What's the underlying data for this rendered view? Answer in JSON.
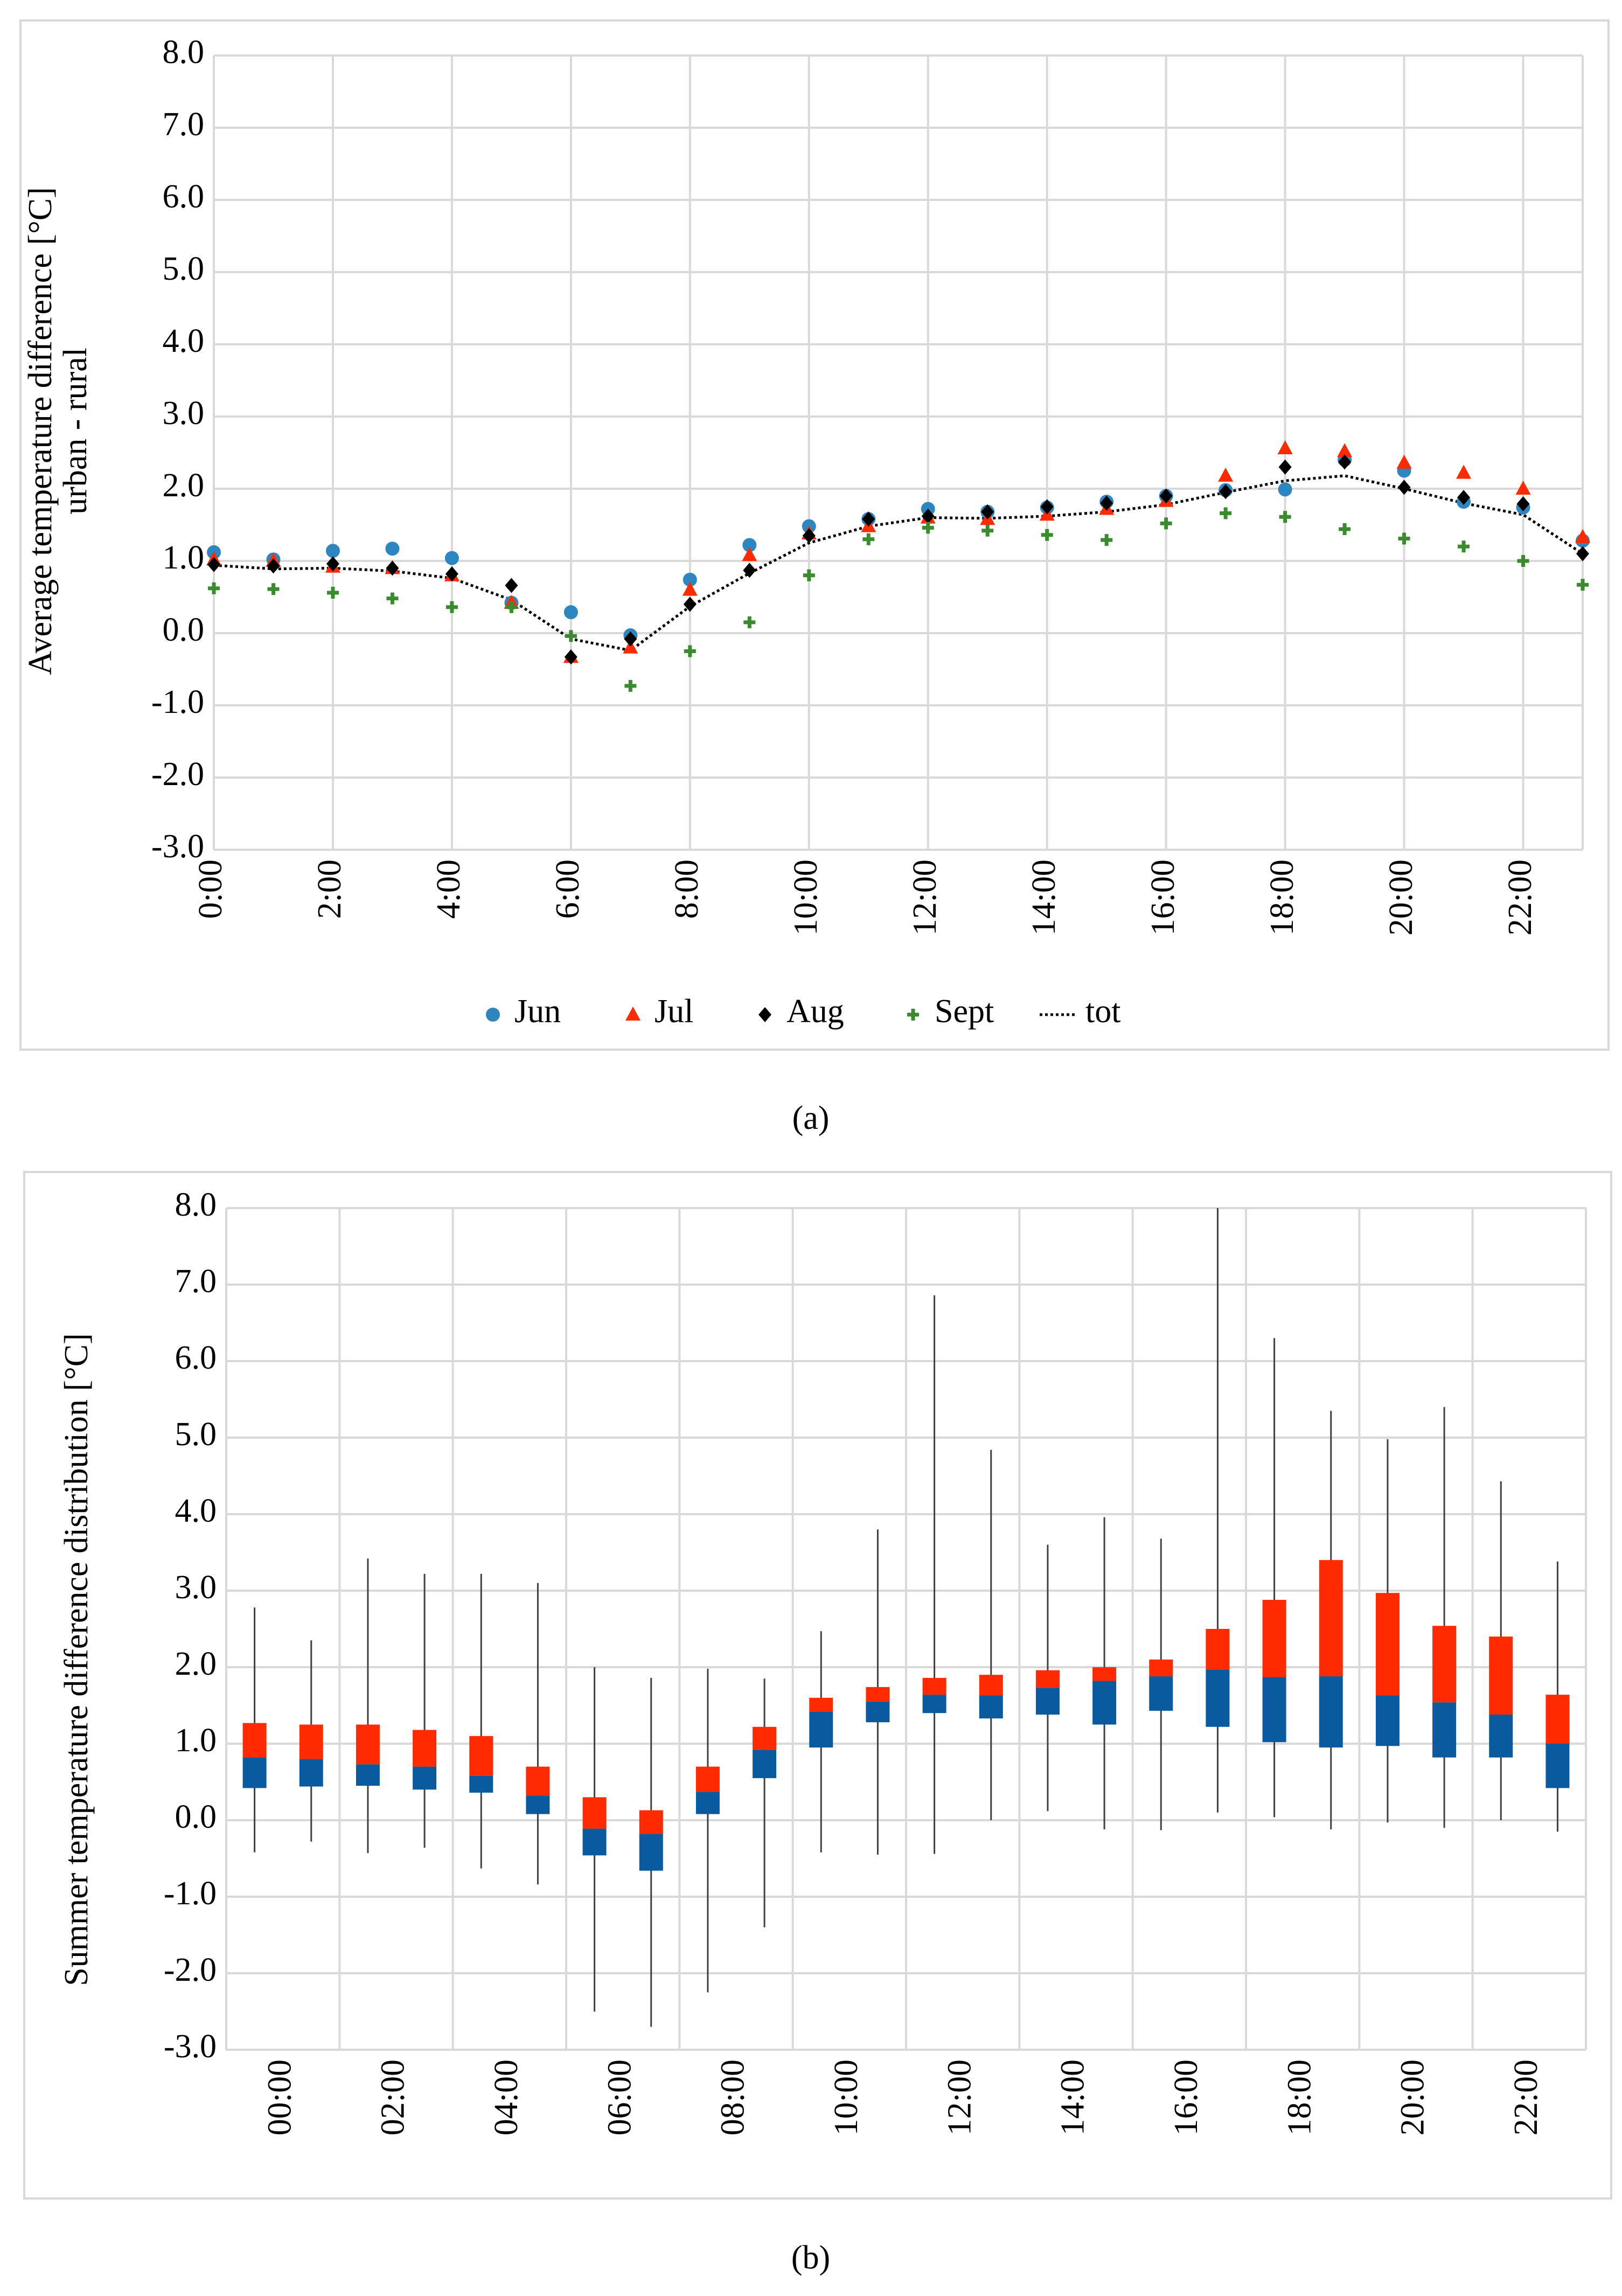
{
  "chart_data": [
    {
      "id": "a",
      "type": "scatter",
      "caption": "(a)",
      "ylabel_line1": "Average temperature difference [°C]",
      "ylabel_line2": "urban - rural",
      "ylim": [
        -3.0,
        8.0
      ],
      "yticks": [
        "8.0",
        "7.0",
        "6.0",
        "5.0",
        "4.0",
        "3.0",
        "2.0",
        "1.0",
        "0.0",
        "-1.0",
        "-2.0",
        "-3.0"
      ],
      "xticks": [
        "0:00",
        "2:00",
        "4:00",
        "6:00",
        "8:00",
        "10:00",
        "12:00",
        "14:00",
        "16:00",
        "18:00",
        "20:00",
        "22:00"
      ],
      "legend_position": "bottom",
      "series": [
        {
          "name": "Jun",
          "marker": "circle",
          "color": "#2e86c1",
          "values": [
            1.12,
            1.02,
            1.14,
            1.17,
            1.04,
            0.42,
            0.29,
            -0.03,
            0.74,
            1.22,
            1.48,
            1.58,
            1.72,
            1.68,
            1.74,
            1.82,
            1.9,
            1.98,
            1.99,
            2.4,
            2.25,
            1.82,
            1.74,
            1.28
          ]
        },
        {
          "name": "Jul",
          "marker": "triangle",
          "color": "#ff2a00",
          "values": [
            1.02,
            1.0,
            0.92,
            0.9,
            0.8,
            0.42,
            -0.33,
            -0.2,
            0.6,
            1.08,
            1.38,
            1.48,
            1.6,
            1.58,
            1.64,
            1.72,
            1.83,
            2.18,
            2.56,
            2.52,
            2.36,
            2.22,
            2.0,
            1.33
          ]
        },
        {
          "name": "Aug",
          "marker": "diamond",
          "color": "#000000",
          "values": [
            0.95,
            0.93,
            0.96,
            0.9,
            0.82,
            0.66,
            -0.33,
            -0.08,
            0.4,
            0.87,
            1.35,
            1.58,
            1.62,
            1.68,
            1.75,
            1.8,
            1.9,
            1.96,
            2.3,
            2.37,
            2.02,
            1.88,
            1.79,
            1.1
          ]
        },
        {
          "name": "Sept",
          "marker": "plus",
          "color": "#3a8a2e",
          "values": [
            0.62,
            0.61,
            0.56,
            0.48,
            0.36,
            0.36,
            -0.04,
            -0.73,
            -0.25,
            0.15,
            0.8,
            1.3,
            1.46,
            1.42,
            1.36,
            1.29,
            1.52,
            1.66,
            1.61,
            1.44,
            1.31,
            1.2,
            1.0,
            0.67
          ]
        },
        {
          "name": "tot",
          "marker": "dotted-line",
          "color": "#000000",
          "values": [
            0.94,
            0.89,
            0.9,
            0.86,
            0.76,
            0.46,
            -0.08,
            -0.24,
            0.37,
            0.83,
            1.25,
            1.48,
            1.6,
            1.59,
            1.62,
            1.68,
            1.78,
            1.95,
            2.11,
            2.18,
            2.0,
            1.8,
            1.64,
            1.1
          ]
        }
      ]
    },
    {
      "id": "b",
      "type": "box",
      "caption": "(b)",
      "ylabel": "Summer temperature difference distribution [°C]",
      "ylim": [
        -3.0,
        8.0
      ],
      "yticks": [
        "8.0",
        "7.0",
        "6.0",
        "5.0",
        "4.0",
        "3.0",
        "2.0",
        "1.0",
        "0.0",
        "-1.0",
        "-2.0",
        "-3.0"
      ],
      "xticks": [
        "00:00",
        "02:00",
        "04:00",
        "06:00",
        "08:00",
        "10:00",
        "12:00",
        "14:00",
        "16:00",
        "18:00",
        "20:00",
        "22:00"
      ],
      "lower_color": "#0a5aa0",
      "upper_color": "#ff2a00",
      "boxes": [
        {
          "min": -0.42,
          "q1": 0.42,
          "median": 0.82,
          "q3": 1.27,
          "max": 2.78
        },
        {
          "min": -0.28,
          "q1": 0.44,
          "median": 0.8,
          "q3": 1.25,
          "max": 2.35
        },
        {
          "min": -0.43,
          "q1": 0.45,
          "median": 0.73,
          "q3": 1.25,
          "max": 3.42
        },
        {
          "min": -0.36,
          "q1": 0.4,
          "median": 0.7,
          "q3": 1.18,
          "max": 3.22
        },
        {
          "min": -0.63,
          "q1": 0.36,
          "median": 0.58,
          "q3": 1.1,
          "max": 3.22
        },
        {
          "min": -0.84,
          "q1": 0.08,
          "median": 0.32,
          "q3": 0.7,
          "max": 3.1
        },
        {
          "min": -2.5,
          "q1": -0.46,
          "median": -0.11,
          "q3": 0.3,
          "max": 2.0
        },
        {
          "min": -2.7,
          "q1": -0.66,
          "median": -0.18,
          "q3": 0.13,
          "max": 1.86
        },
        {
          "min": -2.25,
          "q1": 0.08,
          "median": 0.37,
          "q3": 0.7,
          "max": 1.98
        },
        {
          "min": -1.4,
          "q1": 0.55,
          "median": 0.92,
          "q3": 1.22,
          "max": 1.85
        },
        {
          "min": -0.42,
          "q1": 0.95,
          "median": 1.42,
          "q3": 1.6,
          "max": 2.47
        },
        {
          "min": -0.45,
          "q1": 1.28,
          "median": 1.55,
          "q3": 1.74,
          "max": 3.8
        },
        {
          "min": -0.44,
          "q1": 1.4,
          "median": 1.64,
          "q3": 1.86,
          "max": 6.86
        },
        {
          "min": 0.0,
          "q1": 1.33,
          "median": 1.63,
          "q3": 1.9,
          "max": 4.84
        },
        {
          "min": 0.12,
          "q1": 1.38,
          "median": 1.73,
          "q3": 1.96,
          "max": 3.6
        },
        {
          "min": -0.12,
          "q1": 1.25,
          "median": 1.82,
          "q3": 2.0,
          "max": 3.96
        },
        {
          "min": -0.13,
          "q1": 1.43,
          "median": 1.88,
          "q3": 2.1,
          "max": 3.68
        },
        {
          "min": 0.1,
          "q1": 1.22,
          "median": 1.97,
          "q3": 2.5,
          "max": 8.0
        },
        {
          "min": 0.04,
          "q1": 1.02,
          "median": 1.87,
          "q3": 2.88,
          "max": 6.3
        },
        {
          "min": -0.12,
          "q1": 0.95,
          "median": 1.88,
          "q3": 3.4,
          "max": 5.35
        },
        {
          "min": -0.03,
          "q1": 0.97,
          "median": 1.63,
          "q3": 2.97,
          "max": 4.98
        },
        {
          "min": -0.1,
          "q1": 0.82,
          "median": 1.54,
          "q3": 2.54,
          "max": 5.4
        },
        {
          "min": 0.0,
          "q1": 0.82,
          "median": 1.38,
          "q3": 2.4,
          "max": 4.43
        },
        {
          "min": -0.15,
          "q1": 0.42,
          "median": 1.0,
          "q3": 1.64,
          "max": 3.38
        }
      ]
    }
  ]
}
